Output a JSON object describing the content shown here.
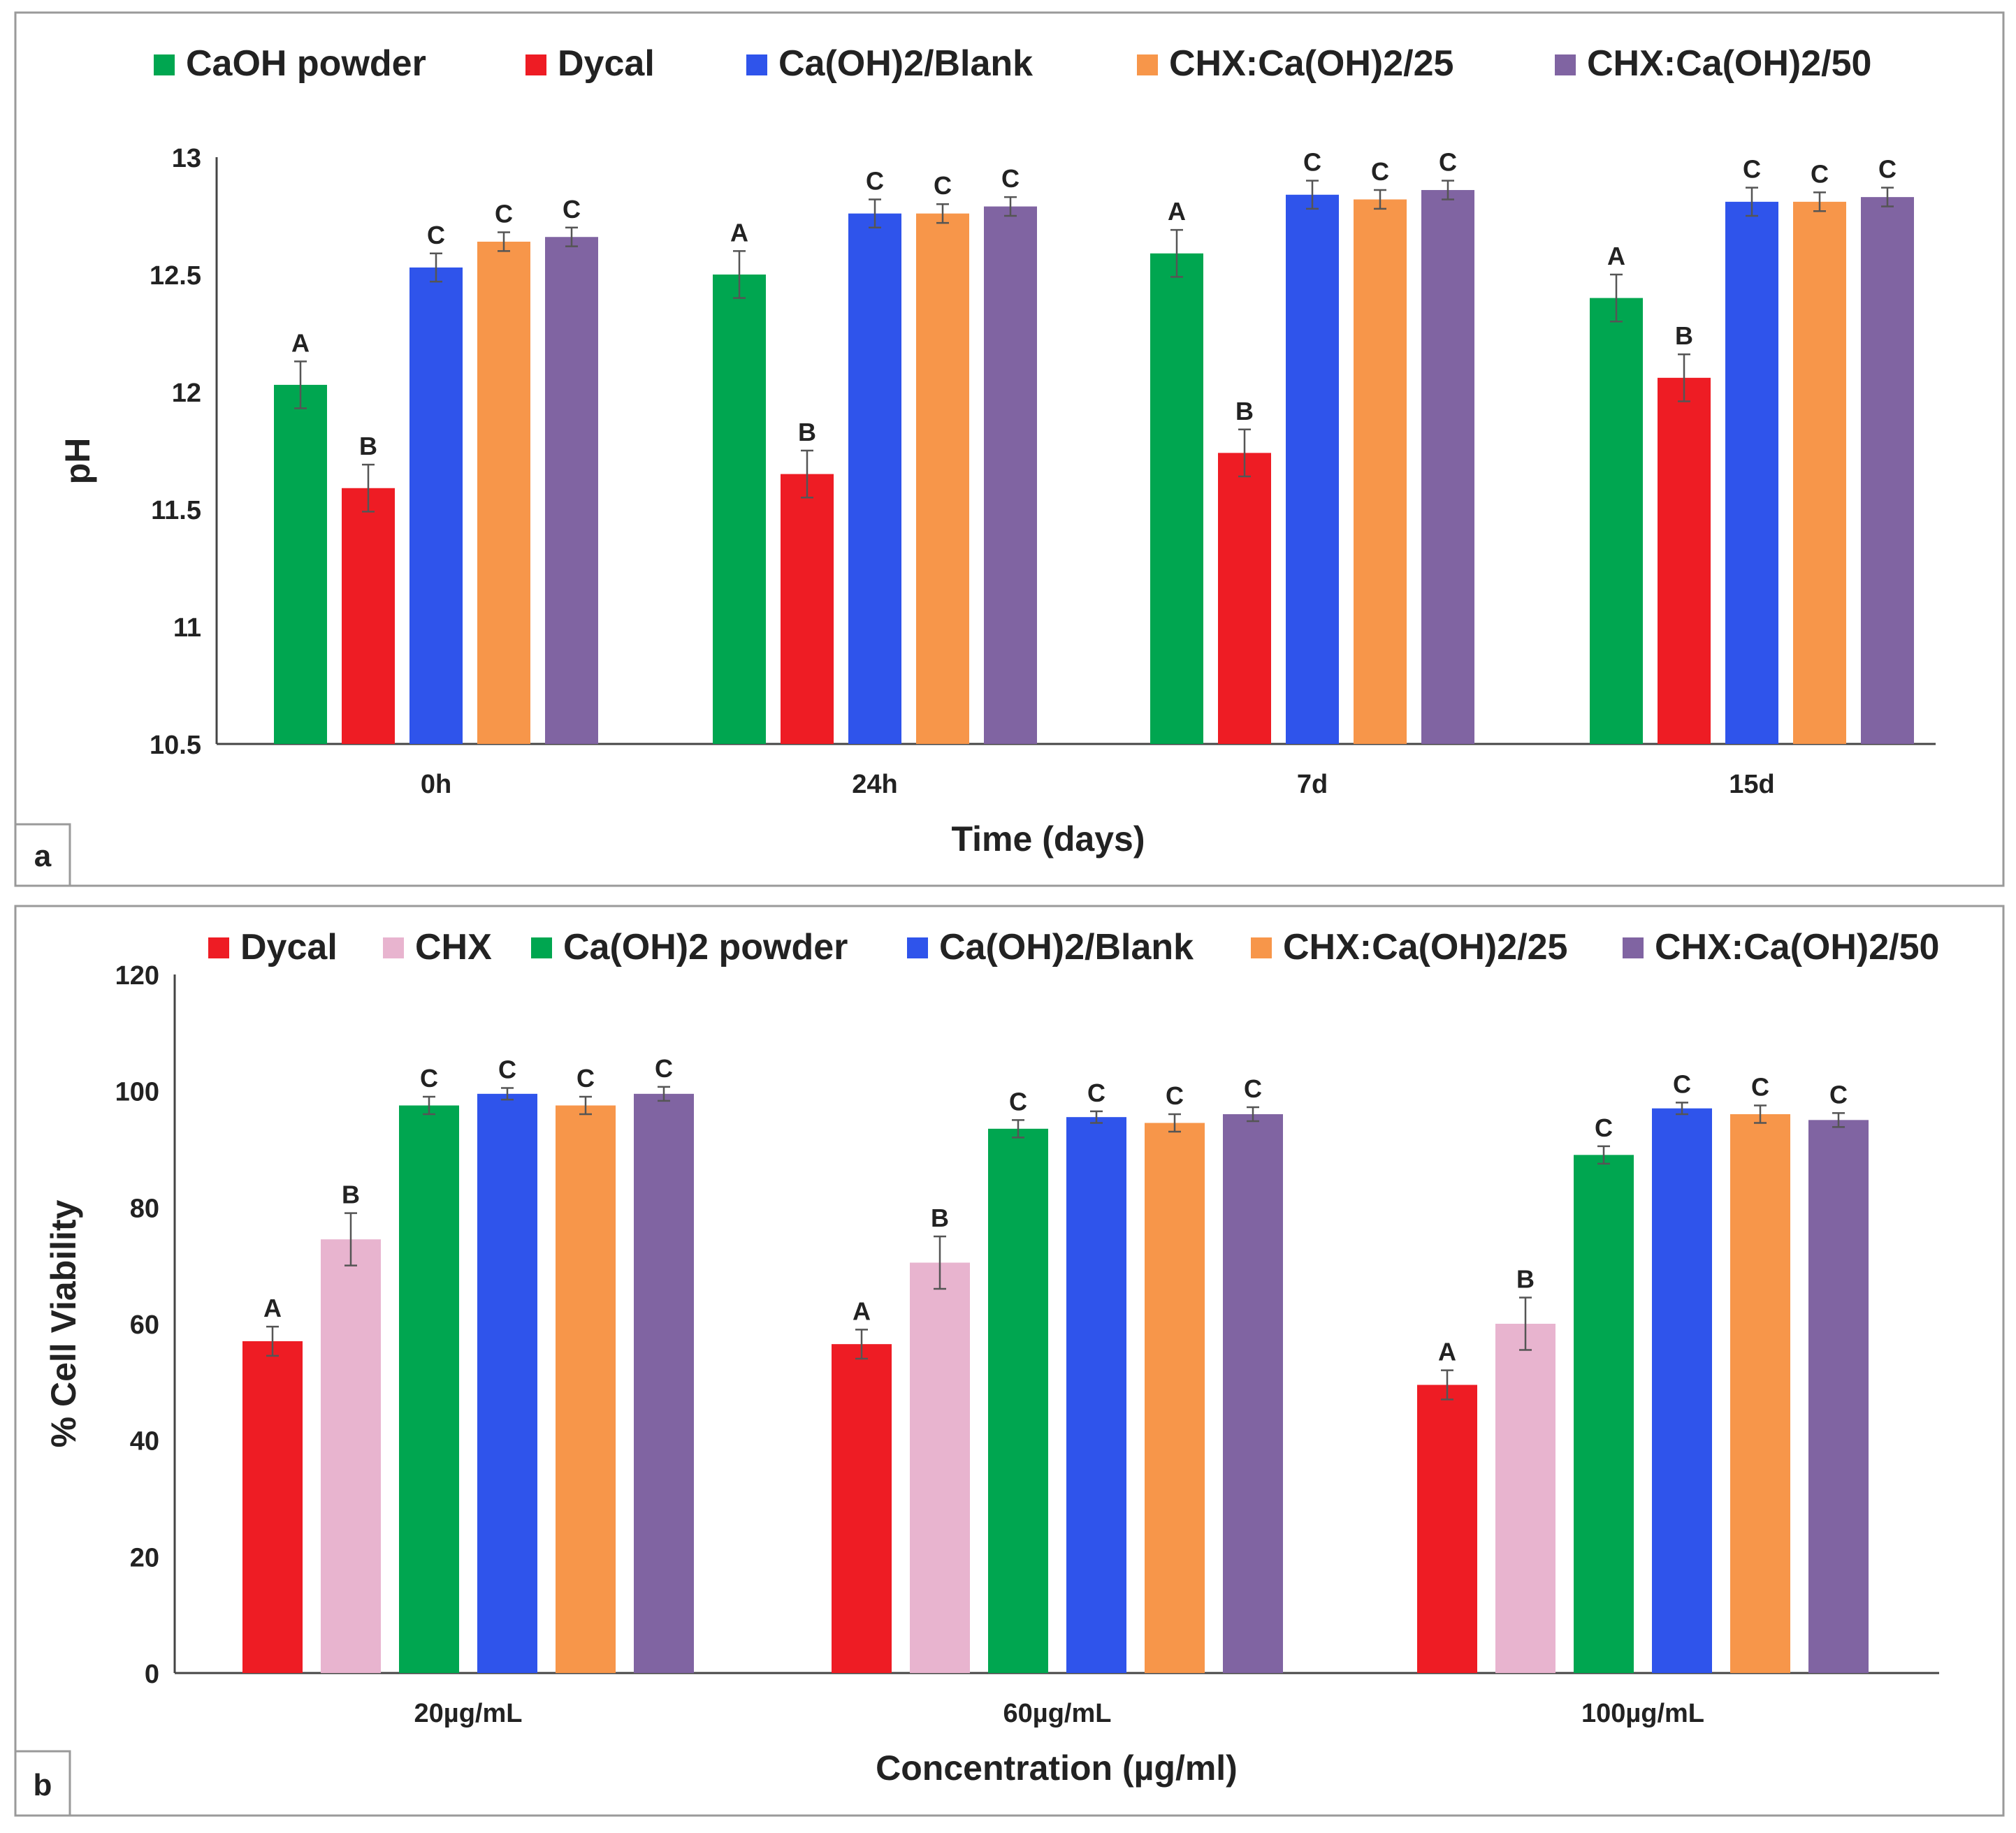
{
  "chart_data": [
    {
      "type": "bar",
      "panel_label": "a",
      "title": "",
      "xlabel": "Time (days)",
      "ylabel": "pH",
      "ylim": [
        10.5,
        13
      ],
      "yticks": [
        "10.5",
        "11",
        "11.5",
        "12",
        "12.5",
        "13"
      ],
      "ytick_values": [
        10.5,
        11,
        11.5,
        12,
        12.5,
        13
      ],
      "grid": false,
      "legend_position": "top",
      "categories": [
        "0h",
        "24h",
        "7d",
        "15d"
      ],
      "series": [
        {
          "name": "CaOH powder",
          "color": "#00a650",
          "values": [
            12.03,
            12.5,
            12.59,
            12.4
          ],
          "errors": [
            0.1,
            0.1,
            0.1,
            0.1
          ],
          "letters": [
            "A",
            "A",
            "A",
            "A"
          ]
        },
        {
          "name": "Dycal",
          "color": "#ee1c24",
          "values": [
            11.59,
            11.65,
            11.74,
            12.06
          ],
          "errors": [
            0.1,
            0.1,
            0.1,
            0.1
          ],
          "letters": [
            "B",
            "B",
            "B",
            "B"
          ]
        },
        {
          "name": "Ca(OH)2/Blank",
          "color": "#2f54eb",
          "values": [
            12.53,
            12.76,
            12.84,
            12.81
          ],
          "errors": [
            0.06,
            0.06,
            0.06,
            0.06
          ],
          "letters": [
            "C",
            "C",
            "C",
            "C"
          ]
        },
        {
          "name": "CHX:Ca(OH)2/25",
          "color": "#f7964a",
          "values": [
            12.64,
            12.76,
            12.82,
            12.81
          ],
          "errors": [
            0.04,
            0.04,
            0.04,
            0.04
          ],
          "letters": [
            "C",
            "C",
            "C",
            "C"
          ]
        },
        {
          "name": "CHX:Ca(OH)2/50",
          "color": "#8064a2",
          "values": [
            12.66,
            12.79,
            12.86,
            12.83
          ],
          "errors": [
            0.04,
            0.04,
            0.04,
            0.04
          ],
          "letters": [
            "C",
            "C",
            "C",
            "C"
          ]
        }
      ]
    },
    {
      "type": "bar",
      "panel_label": "b",
      "title": "",
      "xlabel": "Concentration (µg/ml)",
      "ylabel": "% Cell Viability",
      "ylim": [
        0,
        120
      ],
      "yticks": [
        "0",
        "20",
        "40",
        "60",
        "80",
        "100",
        "120"
      ],
      "ytick_values": [
        0,
        20,
        40,
        60,
        80,
        100,
        120
      ],
      "grid": false,
      "legend_position": "top",
      "categories": [
        "20µg/mL",
        "60µg/mL",
        "100µg/mL"
      ],
      "series": [
        {
          "name": "Dycal",
          "color": "#ee1c24",
          "values": [
            57,
            56.5,
            49.5
          ],
          "errors": [
            2.5,
            2.5,
            2.5
          ],
          "letters": [
            "A",
            "A",
            "A"
          ]
        },
        {
          "name": "CHX",
          "color": "#e8b4cf",
          "values": [
            74.5,
            70.5,
            60
          ],
          "errors": [
            4.5,
            4.5,
            4.5
          ],
          "letters": [
            "B",
            "B",
            "B"
          ]
        },
        {
          "name": "Ca(OH)2 powder",
          "color": "#00a650",
          "values": [
            97.5,
            93.5,
            89
          ],
          "errors": [
            1.5,
            1.5,
            1.5
          ],
          "letters": [
            "C",
            "C",
            "C"
          ]
        },
        {
          "name": "Ca(OH)2/Blank",
          "color": "#2f54eb",
          "values": [
            99.5,
            95.5,
            97
          ],
          "errors": [
            1,
            1,
            1
          ],
          "letters": [
            "C",
            "C",
            "C"
          ]
        },
        {
          "name": "CHX:Ca(OH)2/25",
          "color": "#f7964a",
          "values": [
            97.5,
            94.5,
            96
          ],
          "errors": [
            1.5,
            1.5,
            1.5
          ],
          "letters": [
            "C",
            "C",
            "C"
          ]
        },
        {
          "name": "CHX:Ca(OH)2/50",
          "color": "#8064a2",
          "values": [
            99.5,
            96,
            95
          ],
          "errors": [
            1.2,
            1.2,
            1.2
          ],
          "letters": [
            "C",
            "C",
            "C"
          ]
        }
      ]
    }
  ]
}
